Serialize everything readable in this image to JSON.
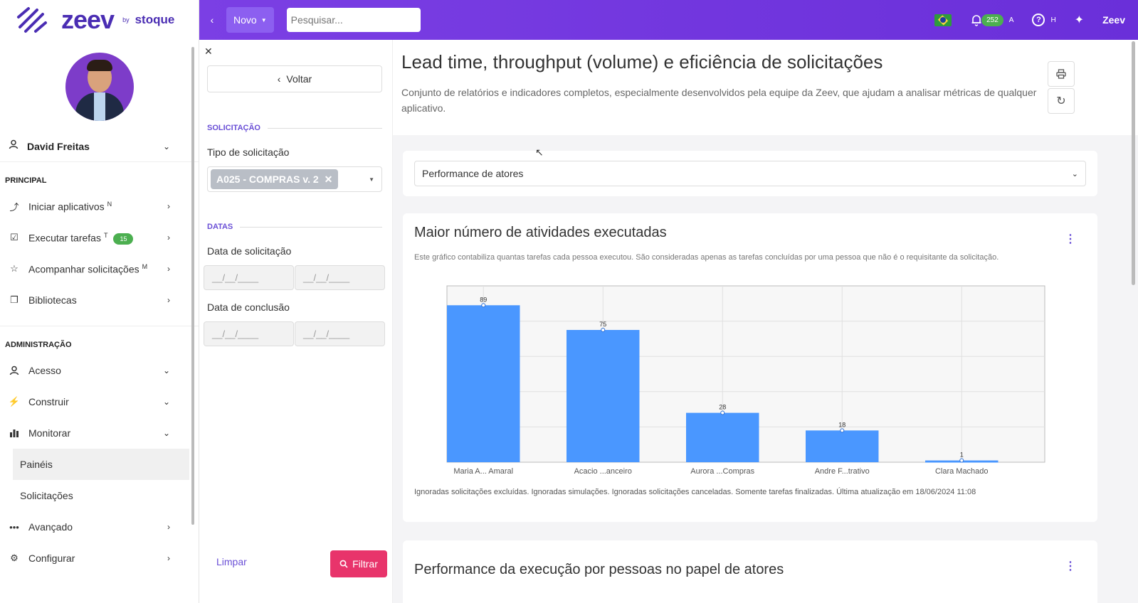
{
  "brand": {
    "logo_text": "zeev",
    "by": "by",
    "company": "stoque"
  },
  "user": {
    "name": "David Freitas"
  },
  "sidebar": {
    "section_principal": "PRINCIPAL",
    "principal_items": [
      {
        "label": "Iniciar aplicativos",
        "sup": "N",
        "icon": "route-icon"
      },
      {
        "label": "Executar tarefas",
        "sup": "T",
        "badge": "15",
        "icon": "checkbox-icon"
      },
      {
        "label": "Acompanhar solicitações",
        "sup": "M",
        "icon": "star-icon"
      },
      {
        "label": "Bibliotecas",
        "sup": "",
        "icon": "copy-icon"
      }
    ],
    "section_admin": "ADMINISTRAÇÃO",
    "admin_items": [
      {
        "label": "Acesso",
        "icon": "user-icon"
      },
      {
        "label": "Construir",
        "icon": "bolt-icon"
      },
      {
        "label": "Monitorar",
        "icon": "bar-chart-icon"
      }
    ],
    "sub_items": [
      "Painéis",
      "Solicitações"
    ],
    "bottom_items": [
      {
        "label": "Avançado",
        "icon": "dots-icon"
      },
      {
        "label": "Configurar",
        "icon": "gear-icon"
      }
    ]
  },
  "topbar": {
    "novo_label": "Novo",
    "search_placeholder": "Pesquisar...",
    "notifications": "252",
    "notif_shortcut": "A",
    "help_shortcut": "H",
    "app_name": "Zeev"
  },
  "filters": {
    "back_label": "Voltar",
    "section_solicitacao": "SOLICITAÇÃO",
    "tipo_label": "Tipo de solicitação",
    "tipo_value": "A025 - COMPRAS v. 2",
    "section_datas": "DATAS",
    "data_solicitacao_label": "Data de solicitação",
    "data_conclusao_label": "Data de conclusão",
    "date_placeholder": "__/__/____",
    "clear_label": "Limpar",
    "filter_label": "Filtrar"
  },
  "main": {
    "title": "Lead time, throughput (volume) e eficiência de solicitações",
    "description": "Conjunto de relatórios e indicadores completos, especialmente desenvolvidos pela equipe da Zeev, que ajudam a analisar métricas de qualquer aplicativo.",
    "report_select": "Performance de atores",
    "card1": {
      "title": "Maior número de atividades executadas",
      "subtitle": "Este gráfico contabiliza quantas tarefas cada pessoa executou. São consideradas apenas as tarefas concluídas por uma pessoa que não é o requisitante da solicitação.",
      "footer": "Ignoradas solicitações excluídas. Ignoradas simulações. Ignoradas solicitações canceladas. Somente tarefas finalizadas. Última atualização em 18/06/2024 11:08"
    },
    "card2": {
      "title": "Performance da execução por pessoas no papel de atores"
    }
  },
  "chart_data": {
    "type": "bar",
    "categories": [
      "Maria A... Amaral",
      "Acacio ...anceiro",
      "Aurora ...Compras",
      "Andre F...trativo",
      "Clara Machado"
    ],
    "values": [
      89,
      75,
      28,
      18,
      1
    ],
    "ylim": [
      0,
      100
    ],
    "grid": true,
    "bar_color": "#4a97ff"
  }
}
